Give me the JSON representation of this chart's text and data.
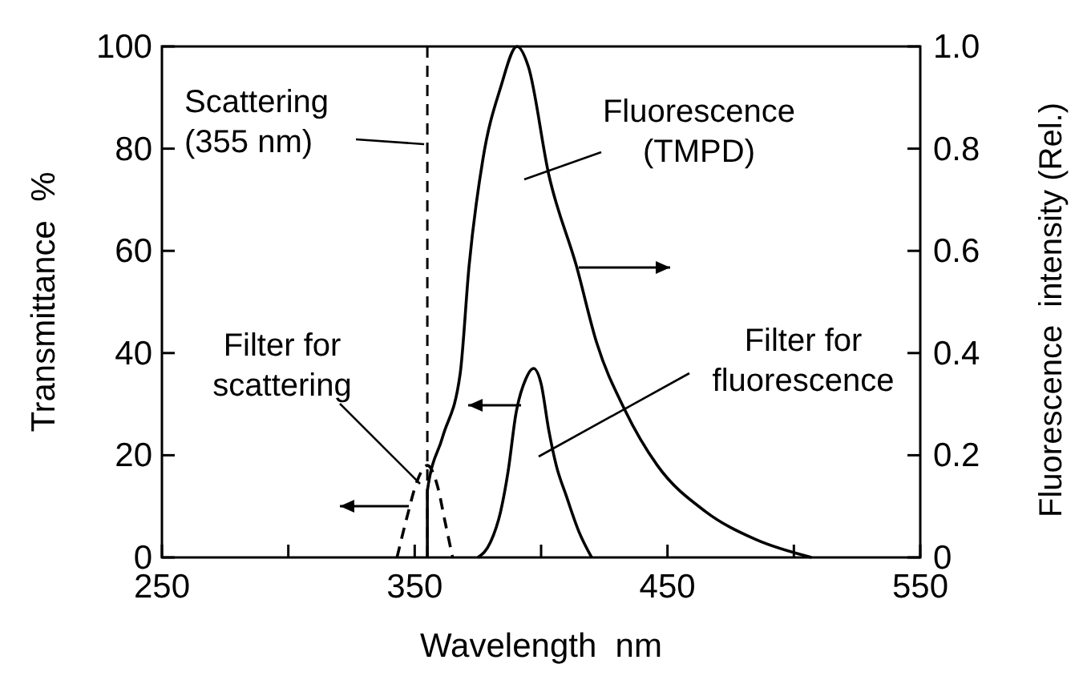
{
  "chart_data": {
    "type": "line",
    "xlabel": "Wavelength  nm",
    "ylabel": "Transmittance  %",
    "y2label": "Fluorescence  intensity (Rel.)",
    "xlim": [
      250,
      550
    ],
    "xticks": [
      250,
      {
        "value": 300,
        "label": null
      },
      350,
      {
        "value": 400,
        "label": null
      },
      450,
      {
        "value": 500,
        "label": null
      },
      550
    ],
    "ylim": [
      0,
      100
    ],
    "yticks": [
      0,
      20,
      40,
      60,
      80,
      100
    ],
    "y2lim": [
      0,
      1
    ],
    "y2ticks": [
      0,
      {
        "value": 0.2,
        "label": "0.2"
      },
      {
        "value": 0.4,
        "label": "0.4"
      },
      {
        "value": 0.6,
        "label": "0.6"
      },
      {
        "value": 0.8,
        "label": "0.8"
      },
      {
        "value": 1,
        "label": "1.0"
      }
    ],
    "marker": "none",
    "series": [
      {
        "name": "Fluorescence (TMPD)",
        "color": "#000000",
        "axis": "y2",
        "line_style": "solid",
        "x": [
          355,
          355,
          361,
          368,
          371.5,
          377,
          384,
          390.5,
          395,
          403,
          414,
          422,
          433,
          446,
          465,
          485,
          507
        ],
        "values": [
          0,
          0.13,
          0.235,
          0.36,
          0.57,
          0.78,
          0.92,
          1.0,
          0.96,
          0.75,
          0.57,
          0.42,
          0.29,
          0.18,
          0.09,
          0.035,
          0
        ]
      },
      {
        "name": "Filter for fluorescence",
        "color": "#000000",
        "axis": "y",
        "line_style": "solid",
        "x": [
          375,
          380,
          384,
          387,
          390,
          394,
          397,
          400,
          403,
          406,
          410,
          415,
          420
        ],
        "values": [
          0,
          3,
          9,
          17,
          28,
          35,
          37,
          34,
          25,
          18,
          12,
          5,
          0
        ]
      },
      {
        "name": "Filter for scattering",
        "color": "#000000",
        "axis": "y",
        "line_style": "dashed",
        "x": [
          343,
          347,
          351,
          355,
          359,
          362,
          365
        ],
        "values": [
          0,
          8,
          15,
          18,
          14,
          7,
          0
        ]
      }
    ],
    "ref_lines": [
      {
        "axis": "x",
        "value": 355,
        "label": "Scattering (355 nm)",
        "line_style": "dashed",
        "color": "#000000"
      }
    ]
  }
}
